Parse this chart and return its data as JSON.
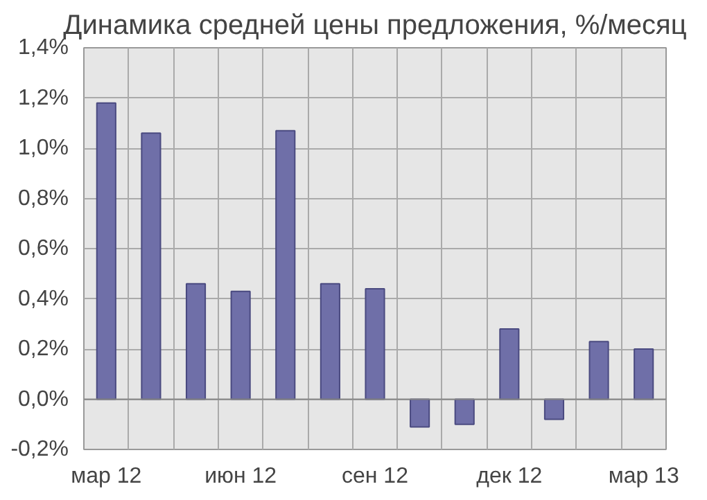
{
  "chart_data": {
    "type": "bar",
    "title": "Динамика средней цены предложения, %/месяц",
    "categories": [
      "мар 12",
      null,
      null,
      "июн 12",
      null,
      null,
      "сен 12",
      null,
      null,
      "дек 12",
      null,
      null,
      "мар 13"
    ],
    "values": [
      1.18,
      1.06,
      0.46,
      0.43,
      1.07,
      0.46,
      0.44,
      -0.11,
      -0.1,
      0.28,
      -0.08,
      0.23,
      0.2
    ],
    "color": "#6f6fa8",
    "ylim": [
      -0.2,
      1.4
    ],
    "yticks": [
      {
        "value": -0.2,
        "label": "-0,2%"
      },
      {
        "value": 0.0,
        "label": "0,0%"
      },
      {
        "value": 0.2,
        "label": "0,2%"
      },
      {
        "value": 0.4,
        "label": "0,4%"
      },
      {
        "value": 0.6,
        "label": "0,6%"
      },
      {
        "value": 0.8,
        "label": "0,8%"
      },
      {
        "value": 1.0,
        "label": "1,0%"
      },
      {
        "value": 1.2,
        "label": "1,2%"
      },
      {
        "value": 1.4,
        "label": "1,4%"
      }
    ],
    "grid": true
  }
}
